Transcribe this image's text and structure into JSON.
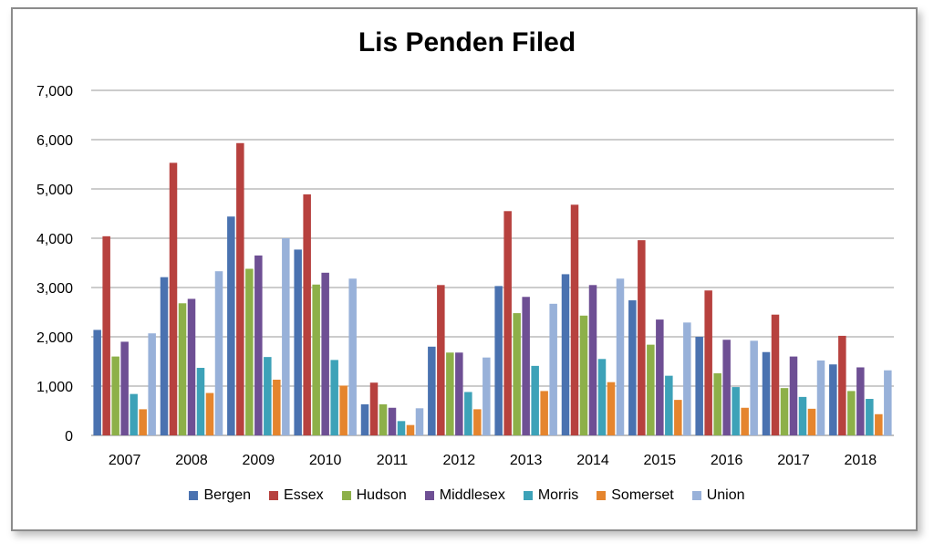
{
  "chart_data": {
    "type": "bar",
    "title": "Lis Penden Filed",
    "xlabel": "",
    "ylabel": "",
    "ylim": [
      0,
      7000
    ],
    "yticks": [
      "0",
      "1,000",
      "2,000",
      "3,000",
      "4,000",
      "5,000",
      "6,000",
      "7,000"
    ],
    "grid": true,
    "legend_position": "bottom",
    "categories": [
      "2007",
      "2008",
      "2009",
      "2010",
      "2011",
      "2012",
      "2013",
      "2014",
      "2015",
      "2016",
      "2017",
      "2018"
    ],
    "series": [
      {
        "name": "Bergen",
        "color": "#4a72b0",
        "values": [
          2140,
          3210,
          4440,
          3770,
          630,
          1800,
          3030,
          3270,
          2740,
          2000,
          1690,
          1440
        ]
      },
      {
        "name": "Essex",
        "color": "#b7413e",
        "values": [
          4040,
          5530,
          5930,
          4890,
          1070,
          3050,
          4550,
          4680,
          3960,
          2940,
          2450,
          2020
        ]
      },
      {
        "name": "Hudson",
        "color": "#8db049",
        "values": [
          1600,
          2680,
          3380,
          3060,
          630,
          1680,
          2480,
          2430,
          1840,
          1260,
          960,
          900
        ]
      },
      {
        "name": "Middlesex",
        "color": "#6e4f94",
        "values": [
          1900,
          2770,
          3650,
          3300,
          560,
          1680,
          2810,
          3050,
          2350,
          1940,
          1600,
          1380
        ]
      },
      {
        "name": "Morris",
        "color": "#3da2b8",
        "values": [
          840,
          1370,
          1590,
          1530,
          290,
          880,
          1410,
          1550,
          1210,
          980,
          780,
          740
        ]
      },
      {
        "name": "Somerset",
        "color": "#e5852e",
        "values": [
          530,
          860,
          1130,
          1010,
          210,
          530,
          900,
          1080,
          720,
          560,
          540,
          430
        ]
      },
      {
        "name": "Union",
        "color": "#98b1d9",
        "values": [
          2070,
          3330,
          4000,
          3180,
          550,
          1580,
          2670,
          3180,
          2290,
          1920,
          1520,
          1320
        ]
      }
    ]
  }
}
